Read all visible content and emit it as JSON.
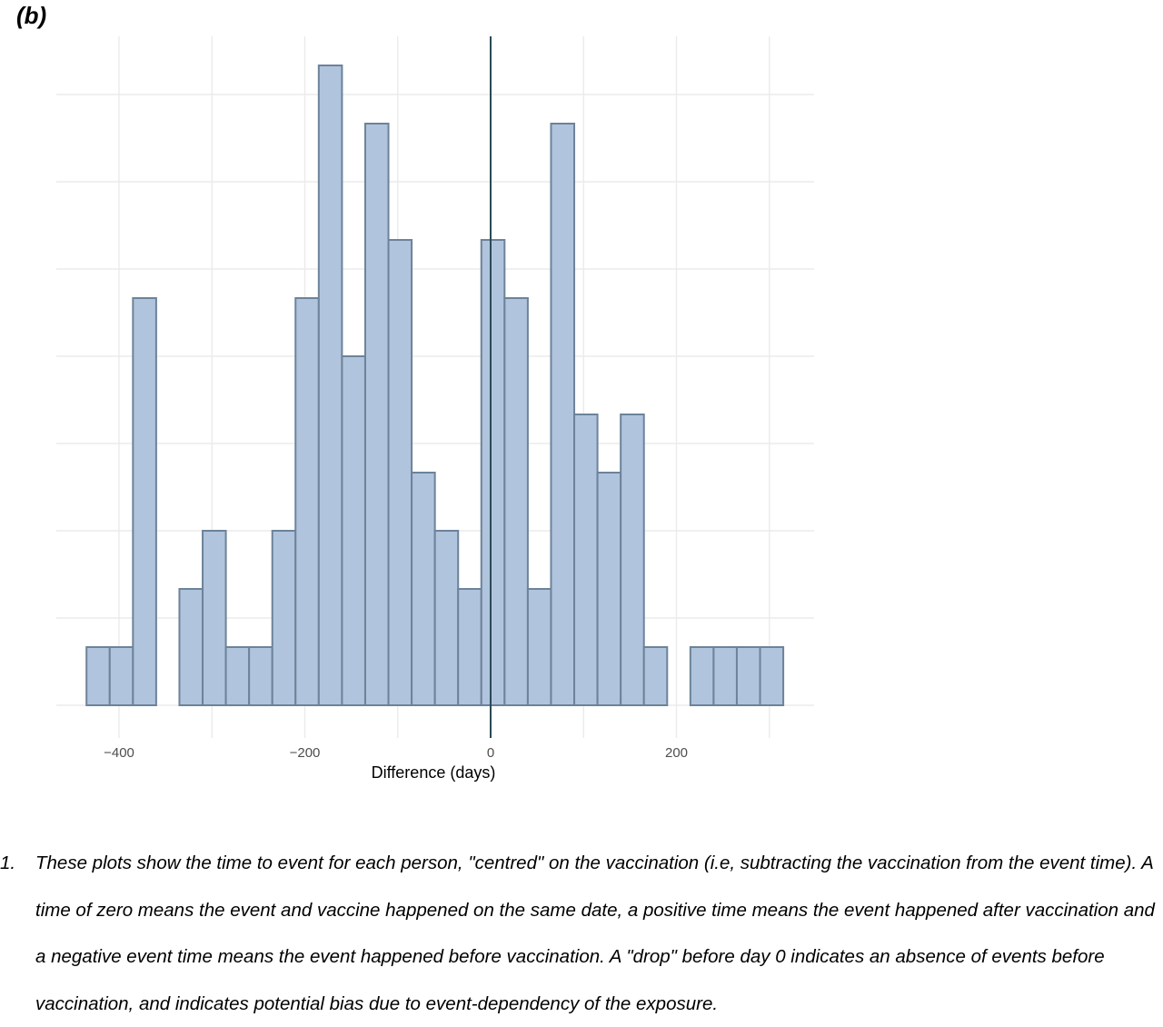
{
  "panel_label": "(b)",
  "chart_data": {
    "type": "histogram",
    "title": "",
    "xlabel": "Difference (days)",
    "ylabel": "",
    "bin_width": 25,
    "xlim": [
      -470,
      345
    ],
    "ylim": [
      0,
      11.2
    ],
    "x_ticks": [
      -400,
      -200,
      0,
      200
    ],
    "x_tick_labels": [
      "−400",
      "−200",
      "0",
      "200"
    ],
    "y_tick_labels_shown": false,
    "grid": true,
    "vline_at": 0,
    "bar_fill": "#b1c4dd",
    "bar_stroke": "#6c8399",
    "vline_color": "#2b4956",
    "bins": [
      {
        "x0": -435,
        "x1": -410,
        "count": 1
      },
      {
        "x0": -410,
        "x1": -385,
        "count": 1
      },
      {
        "x0": -385,
        "x1": -360,
        "count": 7
      },
      {
        "x0": -360,
        "x1": -335,
        "count": 0
      },
      {
        "x0": -335,
        "x1": -310,
        "count": 2
      },
      {
        "x0": -310,
        "x1": -285,
        "count": 3
      },
      {
        "x0": -285,
        "x1": -260,
        "count": 1
      },
      {
        "x0": -260,
        "x1": -235,
        "count": 1
      },
      {
        "x0": -235,
        "x1": -210,
        "count": 3
      },
      {
        "x0": -210,
        "x1": -185,
        "count": 7
      },
      {
        "x0": -185,
        "x1": -160,
        "count": 11
      },
      {
        "x0": -160,
        "x1": -135,
        "count": 6
      },
      {
        "x0": -135,
        "x1": -110,
        "count": 10
      },
      {
        "x0": -110,
        "x1": -85,
        "count": 8
      },
      {
        "x0": -85,
        "x1": -60,
        "count": 4
      },
      {
        "x0": -60,
        "x1": -35,
        "count": 3
      },
      {
        "x0": -35,
        "x1": -10,
        "count": 2
      },
      {
        "x0": -10,
        "x1": 15,
        "count": 8
      },
      {
        "x0": 15,
        "x1": 40,
        "count": 7
      },
      {
        "x0": 40,
        "x1": 65,
        "count": 2
      },
      {
        "x0": 65,
        "x1": 90,
        "count": 10
      },
      {
        "x0": 90,
        "x1": 115,
        "count": 5
      },
      {
        "x0": 115,
        "x1": 140,
        "count": 4
      },
      {
        "x0": 140,
        "x1": 165,
        "count": 5
      },
      {
        "x0": 165,
        "x1": 190,
        "count": 1
      },
      {
        "x0": 190,
        "x1": 215,
        "count": 0
      },
      {
        "x0": 215,
        "x1": 240,
        "count": 1
      },
      {
        "x0": 240,
        "x1": 265,
        "count": 1
      },
      {
        "x0": 265,
        "x1": 290,
        "count": 1
      },
      {
        "x0": 290,
        "x1": 315,
        "count": 1
      }
    ]
  },
  "footnote": {
    "number": "1.",
    "text": "These plots show the time to event for each person, \"centred\" on the vaccination (i.e, subtracting the vaccination from the event time). A time of zero means the event and vaccine happened on the same date, a positive time means the event happened after vaccination and a negative event time means the event happened before vaccination. A \"drop\" before day 0 indicates an absence of events before vaccination, and indicates potential bias due to event-dependency of the exposure."
  }
}
